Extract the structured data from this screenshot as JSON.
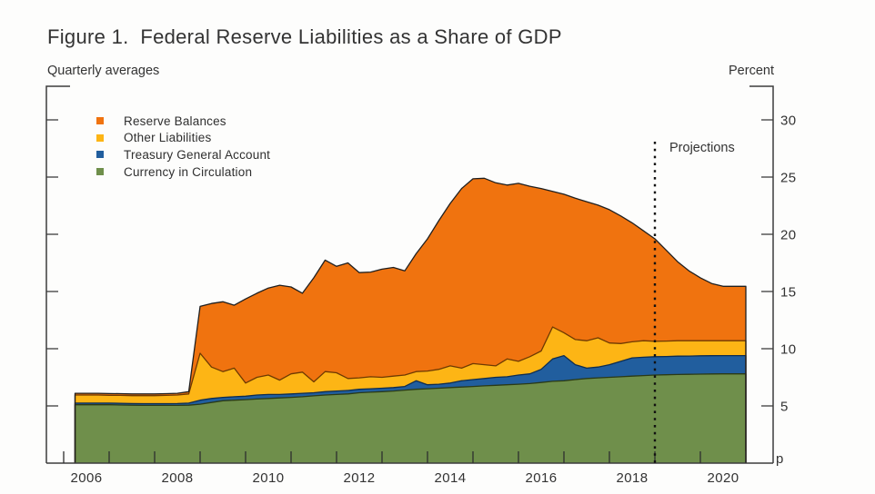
{
  "chart_data": {
    "type": "area",
    "stacked": true,
    "title": "Figure 1.  Federal Reserve Liabilities as a Share of GDP",
    "subtitle": "Quarterly averages",
    "unit": "Percent",
    "projections_label": "Projections",
    "footnote_marker": "p",
    "projection_start": 2018.5,
    "ylim": [
      0,
      33
    ],
    "y_ticks": [
      5,
      10,
      15,
      20,
      25,
      30
    ],
    "x_tick_labels": [
      2006,
      2008,
      2010,
      2012,
      2014,
      2016,
      2018,
      2020
    ],
    "legend_order": [
      3,
      2,
      1,
      0
    ],
    "x": [
      2005.75,
      2006.0,
      2006.25,
      2006.5,
      2006.75,
      2007.0,
      2007.25,
      2007.5,
      2007.75,
      2008.0,
      2008.25,
      2008.5,
      2008.75,
      2009.0,
      2009.25,
      2009.5,
      2009.75,
      2010.0,
      2010.25,
      2010.5,
      2010.75,
      2011.0,
      2011.25,
      2011.5,
      2011.75,
      2012.0,
      2012.25,
      2012.5,
      2012.75,
      2013.0,
      2013.25,
      2013.5,
      2013.75,
      2014.0,
      2014.25,
      2014.5,
      2014.75,
      2015.0,
      2015.25,
      2015.5,
      2015.75,
      2016.0,
      2016.25,
      2016.5,
      2016.75,
      2017.0,
      2017.25,
      2017.5,
      2017.75,
      2018.0,
      2018.25,
      2018.5,
      2018.75,
      2019.0,
      2019.25,
      2019.5,
      2019.75,
      2020.0,
      2020.25,
      2020.5
    ],
    "series": [
      {
        "name": "Currency in Circulation",
        "color": "#6F8F4B",
        "stroke": "#2a3a16",
        "values": [
          5.1,
          5.1,
          5.1,
          5.1,
          5.08,
          5.06,
          5.05,
          5.05,
          5.05,
          5.05,
          5.06,
          5.15,
          5.3,
          5.45,
          5.5,
          5.55,
          5.6,
          5.65,
          5.7,
          5.75,
          5.8,
          5.88,
          5.95,
          6.0,
          6.05,
          6.15,
          6.2,
          6.25,
          6.3,
          6.38,
          6.45,
          6.5,
          6.55,
          6.6,
          6.65,
          6.7,
          6.75,
          6.8,
          6.85,
          6.9,
          6.95,
          7.05,
          7.15,
          7.2,
          7.3,
          7.4,
          7.45,
          7.5,
          7.55,
          7.6,
          7.65,
          7.7,
          7.72,
          7.75,
          7.76,
          7.78,
          7.79,
          7.8,
          7.8,
          7.8
        ]
      },
      {
        "name": "Treasury General Account",
        "color": "#215E9E",
        "stroke": "#0d2c50",
        "values": [
          0.15,
          0.15,
          0.15,
          0.15,
          0.15,
          0.15,
          0.15,
          0.15,
          0.15,
          0.16,
          0.19,
          0.35,
          0.35,
          0.3,
          0.3,
          0.3,
          0.35,
          0.35,
          0.3,
          0.3,
          0.3,
          0.27,
          0.3,
          0.3,
          0.3,
          0.3,
          0.3,
          0.3,
          0.3,
          0.32,
          0.75,
          0.35,
          0.35,
          0.4,
          0.55,
          0.6,
          0.65,
          0.7,
          0.7,
          0.8,
          0.85,
          1.15,
          1.95,
          2.2,
          1.3,
          0.9,
          0.95,
          1.1,
          1.35,
          1.6,
          1.6,
          1.6,
          1.6,
          1.6,
          1.6,
          1.6,
          1.6,
          1.6,
          1.6,
          1.6
        ]
      },
      {
        "name": "Other Liabilities",
        "color": "#FDB515",
        "stroke": "#6e3a02",
        "values": [
          0.7,
          0.7,
          0.7,
          0.68,
          0.69,
          0.69,
          0.7,
          0.7,
          0.72,
          0.74,
          0.8,
          4.1,
          2.75,
          2.25,
          2.5,
          1.15,
          1.55,
          1.7,
          1.25,
          1.75,
          1.85,
          0.95,
          1.75,
          1.6,
          1.05,
          1.0,
          1.05,
          0.95,
          1.0,
          1.0,
          0.8,
          1.2,
          1.3,
          1.5,
          1.1,
          1.4,
          1.2,
          1.0,
          1.55,
          1.2,
          1.5,
          1.6,
          2.8,
          2.0,
          2.2,
          2.4,
          2.55,
          1.9,
          1.55,
          1.4,
          1.45,
          1.35,
          1.35,
          1.35,
          1.34,
          1.32,
          1.31,
          1.3,
          1.3,
          1.3
        ]
      },
      {
        "name": "Reserve Balances",
        "color": "#F0730F",
        "stroke": "#1f1f1f",
        "values": [
          0.15,
          0.15,
          0.15,
          0.15,
          0.15,
          0.15,
          0.15,
          0.15,
          0.15,
          0.15,
          0.2,
          4.1,
          5.55,
          6.1,
          5.5,
          7.35,
          7.35,
          7.6,
          8.3,
          7.6,
          6.9,
          9.1,
          9.75,
          9.3,
          10.1,
          9.2,
          9.15,
          9.45,
          9.5,
          9.1,
          10.3,
          11.55,
          13.0,
          14.2,
          15.7,
          16.15,
          16.3,
          16.0,
          15.2,
          15.55,
          14.9,
          14.2,
          11.85,
          12.1,
          12.35,
          12.15,
          11.6,
          11.65,
          11.15,
          10.4,
          9.6,
          8.95,
          7.93,
          6.9,
          6.1,
          5.5,
          5.0,
          4.75,
          4.75,
          4.75
        ]
      }
    ]
  }
}
